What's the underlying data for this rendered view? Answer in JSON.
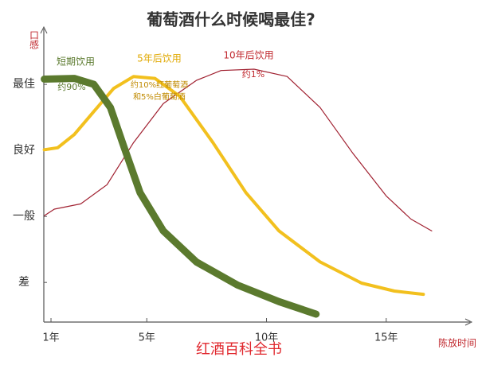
{
  "chart_data": {
    "type": "line",
    "title": "葡萄酒什么时候喝最佳?",
    "y_label": "口感",
    "x_label": "陈放时间",
    "watermark": "红酒百科全书",
    "xlim": [
      0.7,
      18.5
    ],
    "xticks": [
      {
        "value": 1,
        "label": "1年"
      },
      {
        "value": 5,
        "label": "5年"
      },
      {
        "value": 10,
        "label": "10年"
      },
      {
        "value": 15,
        "label": "15年"
      }
    ],
    "ylim": [
      0.4,
      4.7
    ],
    "yticks": [
      {
        "value": 1,
        "label": "差"
      },
      {
        "value": 2,
        "label": "一般"
      },
      {
        "value": 3,
        "label": "良好"
      },
      {
        "value": 4,
        "label": "最佳"
      }
    ],
    "series": [
      {
        "name": "短期饮用",
        "color": "#5b7a2e",
        "x": [
          0.72,
          1.97,
          2.79,
          3.48,
          4.03,
          4.72,
          5.69,
          7.07,
          8.79,
          10.52,
          12.07
        ],
        "values": [
          4.08,
          4.09,
          4.0,
          3.65,
          3.07,
          2.36,
          1.78,
          1.31,
          0.96,
          0.71,
          0.52
        ]
      },
      {
        "name": "5年后饮用",
        "color": "#f2c01e",
        "x": [
          0.72,
          1.28,
          1.97,
          2.79,
          3.62,
          4.45,
          5.34,
          6.38,
          7.76,
          9.14,
          10.52,
          12.24,
          13.97,
          15.34,
          16.55
        ],
        "values": [
          3.01,
          3.04,
          3.24,
          3.59,
          3.94,
          4.12,
          4.09,
          3.82,
          3.12,
          2.36,
          1.78,
          1.31,
          0.99,
          0.87,
          0.82
        ]
      },
      {
        "name": "10年后饮用",
        "color": "#a02030",
        "x": [
          0.72,
          1.14,
          2.24,
          3.34,
          4.45,
          5.69,
          7.07,
          8.1,
          9.48,
          10.86,
          12.24,
          13.62,
          15.0,
          16.03,
          16.9
        ],
        "values": [
          2.01,
          2.11,
          2.19,
          2.48,
          3.12,
          3.71,
          4.06,
          4.21,
          4.23,
          4.12,
          3.65,
          2.95,
          2.31,
          1.96,
          1.78
        ]
      }
    ],
    "annotations": [
      "约90%",
      "约10%红葡萄酒",
      "和5%白葡萄酒",
      "约1%"
    ]
  }
}
